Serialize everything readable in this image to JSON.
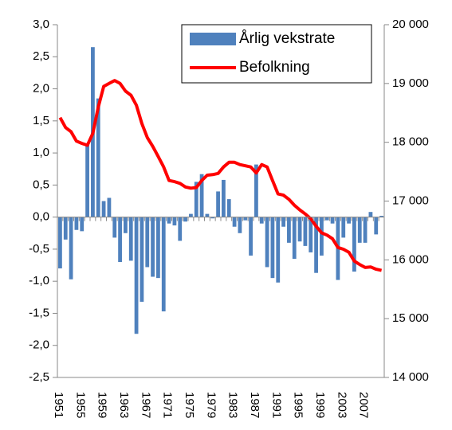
{
  "chart_data": {
    "type": "bar_line",
    "categories": [
      "1951",
      null,
      null,
      null,
      "1955",
      null,
      null,
      null,
      "1959",
      null,
      null,
      null,
      "1963",
      null,
      null,
      null,
      "1967",
      null,
      null,
      null,
      "1971",
      null,
      null,
      null,
      "1975",
      null,
      null,
      null,
      "1979",
      null,
      null,
      null,
      "1983",
      null,
      null,
      null,
      "1987",
      null,
      null,
      null,
      "1991",
      null,
      null,
      null,
      "1995",
      null,
      null,
      null,
      "1999",
      null,
      null,
      null,
      "2003",
      null,
      null,
      null,
      "2007",
      null,
      null,
      null
    ],
    "series": [
      {
        "name": "Årlig vekstrate",
        "type": "bar",
        "axis": "y",
        "color": "#4f81bd",
        "values": [
          -0.8,
          -0.35,
          -0.97,
          -0.2,
          -0.22,
          1.15,
          2.65,
          1.85,
          0.25,
          0.3,
          -0.32,
          -0.7,
          -0.25,
          -0.68,
          -1.82,
          -1.32,
          -0.78,
          -0.93,
          -0.95,
          -1.47,
          -0.1,
          -0.13,
          -0.37,
          -0.07,
          0.05,
          0.55,
          0.67,
          0.05,
          -0.02,
          0.4,
          0.58,
          0.28,
          -0.15,
          -0.25,
          -0.05,
          -0.6,
          0.82,
          -0.1,
          -0.78,
          -0.95,
          -1.02,
          -0.15,
          -0.4,
          -0.65,
          -0.38,
          -0.45,
          -0.55,
          -0.87,
          -0.6,
          -0.05,
          -0.1,
          -0.98,
          -0.32,
          -0.1,
          -0.85,
          -0.4,
          -0.4,
          0.08,
          -0.27,
          0.02
        ]
      },
      {
        "name": "Befolkning",
        "type": "line",
        "axis": "y2",
        "color": "#ff0000",
        "values": [
          18420,
          18250,
          18180,
          18020,
          17980,
          17950,
          18150,
          18600,
          18950,
          19000,
          19050,
          19000,
          18870,
          18800,
          18630,
          18320,
          18080,
          17930,
          17760,
          17580,
          17350,
          17330,
          17300,
          17240,
          17220,
          17230,
          17350,
          17440,
          17450,
          17470,
          17580,
          17660,
          17660,
          17620,
          17600,
          17580,
          17480,
          17620,
          17580,
          17350,
          17120,
          17100,
          17030,
          16930,
          16850,
          16780,
          16700,
          16570,
          16460,
          16420,
          16360,
          16210,
          16180,
          16130,
          15980,
          15920,
          15870,
          15880,
          15840,
          15820
        ]
      }
    ],
    "ylim": [
      -2.5,
      3.0
    ],
    "yticks": [
      {
        "value": -2.5,
        "label": "-2,5"
      },
      {
        "value": -2.0,
        "label": "-2,0"
      },
      {
        "value": -1.5,
        "label": "-1,5"
      },
      {
        "value": -1.0,
        "label": "-1,0"
      },
      {
        "value": -0.5,
        "label": "-0,5"
      },
      {
        "value": 0,
        "label": "0,0"
      },
      {
        "value": 0.5,
        "label": "0,5"
      },
      {
        "value": 1.0,
        "label": "1,0"
      },
      {
        "value": 1.5,
        "label": "1,5"
      },
      {
        "value": 2.0,
        "label": "2,0"
      },
      {
        "value": 2.5,
        "label": "2,5"
      },
      {
        "value": 3.0,
        "label": "3,0"
      }
    ],
    "y2lim": [
      14000,
      20000
    ],
    "y2ticks": [
      {
        "value": 14000,
        "label": "14 000"
      },
      {
        "value": 15000,
        "label": "15 000"
      },
      {
        "value": 16000,
        "label": "16 000"
      },
      {
        "value": 17000,
        "label": "17 000"
      },
      {
        "value": 18000,
        "label": "18 000"
      },
      {
        "value": 19000,
        "label": "19 000"
      },
      {
        "value": 20000,
        "label": "20 000"
      }
    ],
    "legend": "upper right"
  }
}
